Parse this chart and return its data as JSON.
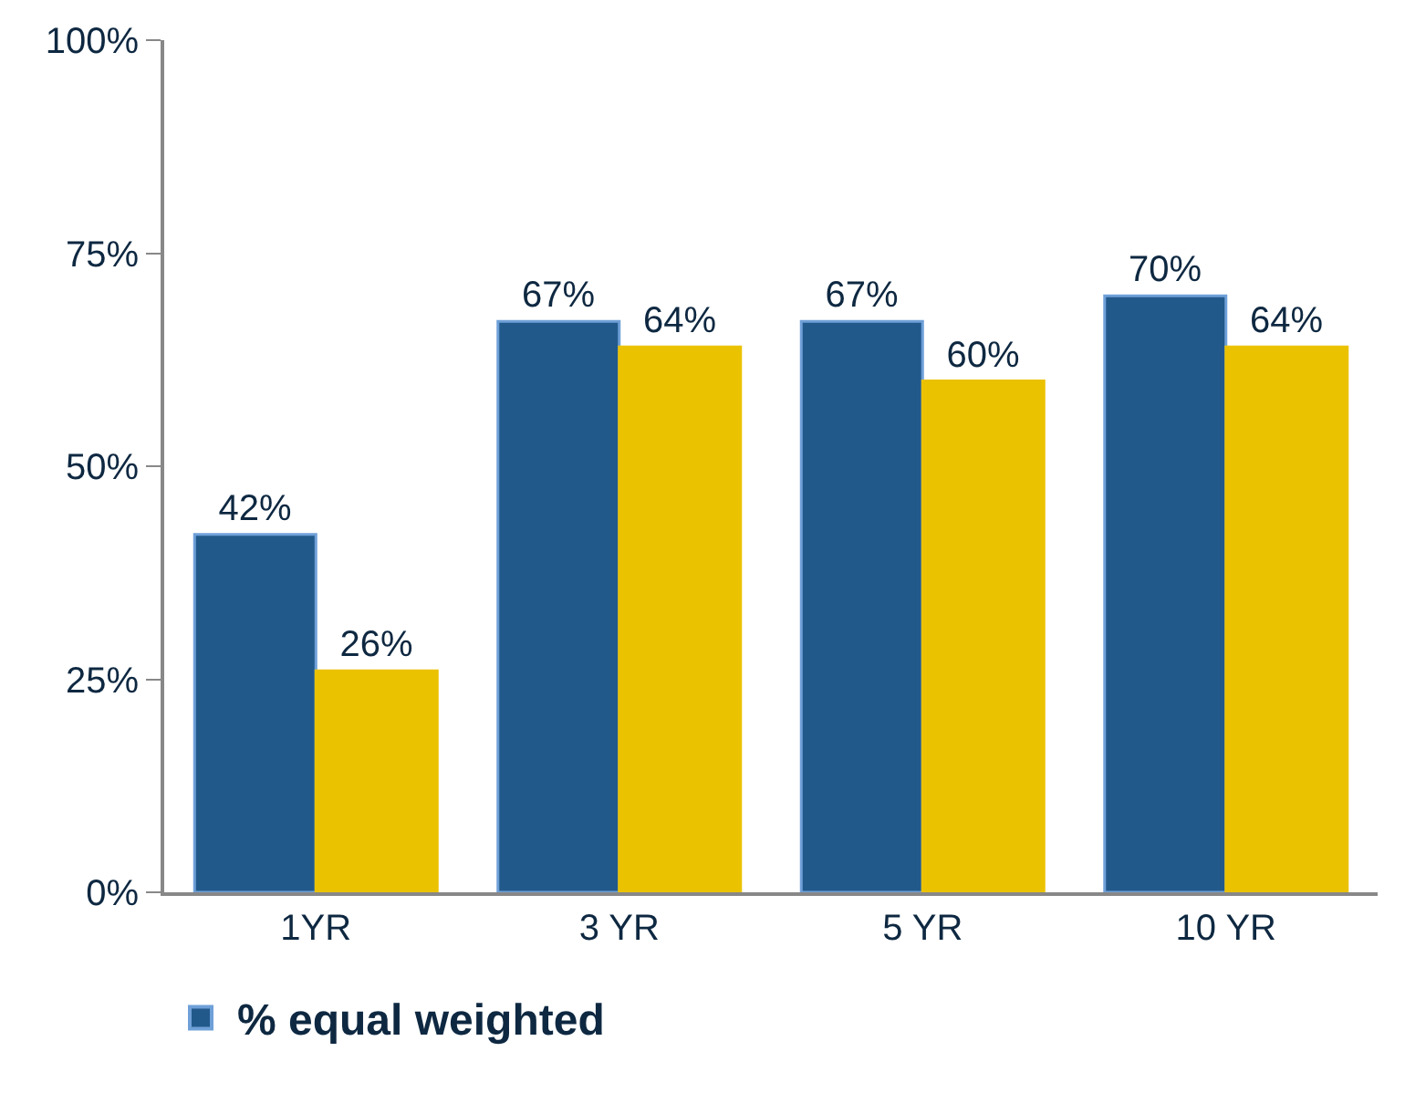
{
  "chart_data": {
    "type": "bar",
    "categories": [
      "1YR",
      "3 YR",
      "5 YR",
      "10 YR"
    ],
    "series": [
      {
        "name": "% equal weighted",
        "color": "#22598b",
        "values": [
          42,
          67,
          67,
          70
        ],
        "value_labels": [
          "42%",
          "67%",
          "67%",
          "70%"
        ]
      },
      {
        "color": "#ebc200",
        "values": [
          26,
          64,
          60,
          64
        ],
        "value_labels": [
          "26%",
          "64%",
          "60%",
          "64%"
        ]
      }
    ],
    "ylim": [
      0,
      100
    ],
    "yticks": [
      {
        "value": 0,
        "label": "0%"
      },
      {
        "value": 25,
        "label": "25%"
      },
      {
        "value": 50,
        "label": "50%"
      },
      {
        "value": 75,
        "label": "75%"
      },
      {
        "value": 100,
        "label": "100%"
      }
    ],
    "legend": "bottom"
  }
}
